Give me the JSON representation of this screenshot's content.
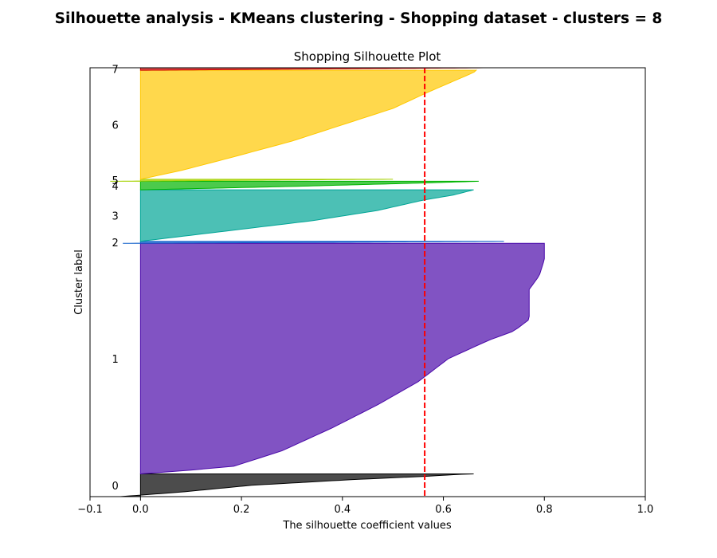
{
  "figure": {
    "suptitle": "Silhouette analysis - KMeans clustering - Shopping dataset - clusters = 8"
  },
  "chart_data": {
    "type": "area",
    "title": "Shopping Silhouette Plot",
    "xlabel": "The silhouette coefficient values",
    "ylabel": "Cluster label",
    "xlim": [
      -0.1,
      1.0
    ],
    "ylim": [
      0,
      850
    ],
    "xticks": [
      -0.1,
      0.0,
      0.2,
      0.4,
      0.6,
      0.8,
      1.0
    ],
    "xtick_labels": [
      "−0.1",
      "0.0",
      "0.2",
      "0.4",
      "0.6",
      "0.8",
      "1.0"
    ],
    "grid": false,
    "average_silhouette": 0.563,
    "average_line_color": "#ff0000",
    "clusters": [
      {
        "label": "0",
        "color": "#000000",
        "y_lower": 0,
        "size": 45,
        "profile": [
          [
            0,
            -0.04
          ],
          [
            0.2,
            0.08
          ],
          [
            0.5,
            0.22
          ],
          [
            0.75,
            0.42
          ],
          [
            0.9,
            0.57
          ],
          [
            0.98,
            0.63
          ],
          [
            1,
            0.66
          ]
        ]
      },
      {
        "label": "1",
        "color": "#4b0aaa",
        "y_lower": 45,
        "size": 457,
        "profile": [
          [
            0,
            0.0
          ],
          [
            0.03,
            0.18
          ],
          [
            0.1,
            0.28
          ],
          [
            0.2,
            0.38
          ],
          [
            0.3,
            0.47
          ],
          [
            0.4,
            0.55
          ],
          [
            0.5,
            0.61
          ],
          [
            0.58,
            0.69
          ],
          [
            0.62,
            0.74
          ],
          [
            0.67,
            0.77
          ],
          [
            0.8,
            0.77
          ],
          [
            0.86,
            0.79
          ],
          [
            0.93,
            0.8
          ],
          [
            1,
            0.8
          ]
        ]
      },
      {
        "label": "2",
        "color": "#0a5bc8",
        "y_lower": 502,
        "size": 4,
        "profile": [
          [
            0,
            -0.035
          ],
          [
            0.4,
            0.3
          ],
          [
            1,
            0.72
          ]
        ]
      },
      {
        "label": "3",
        "color": "#00a596",
        "y_lower": 506,
        "size": 102,
        "profile": [
          [
            0,
            0.0
          ],
          [
            0.2,
            0.17
          ],
          [
            0.4,
            0.34
          ],
          [
            0.6,
            0.47
          ],
          [
            0.8,
            0.56
          ],
          [
            0.9,
            0.62
          ],
          [
            1,
            0.66
          ]
        ]
      },
      {
        "label": "4",
        "color": "#00b400",
        "y_lower": 608,
        "size": 17,
        "profile": [
          [
            0,
            0.0
          ],
          [
            0.4,
            0.3
          ],
          [
            0.8,
            0.56
          ],
          [
            1,
            0.67
          ]
        ]
      },
      {
        "label": "5",
        "color": "#a5d200",
        "y_lower": 625,
        "size": 4,
        "profile": [
          [
            0,
            -0.06
          ],
          [
            0.5,
            0.2
          ],
          [
            1,
            0.5
          ]
        ]
      },
      {
        "label": "6",
        "color": "#ffc800",
        "y_lower": 629,
        "size": 216,
        "profile": [
          [
            0,
            0.0
          ],
          [
            0.08,
            0.08
          ],
          [
            0.2,
            0.18
          ],
          [
            0.35,
            0.3
          ],
          [
            0.5,
            0.4
          ],
          [
            0.65,
            0.5
          ],
          [
            0.8,
            0.57
          ],
          [
            0.88,
            0.61
          ],
          [
            0.94,
            0.64
          ],
          [
            0.98,
            0.66
          ],
          [
            1,
            0.665
          ]
        ]
      },
      {
        "label": "7",
        "color": "#cc0000",
        "y_lower": 845,
        "size": 5,
        "profile": [
          [
            0,
            0.0
          ],
          [
            0.5,
            0.35
          ],
          [
            1,
            0.69
          ]
        ]
      }
    ]
  }
}
